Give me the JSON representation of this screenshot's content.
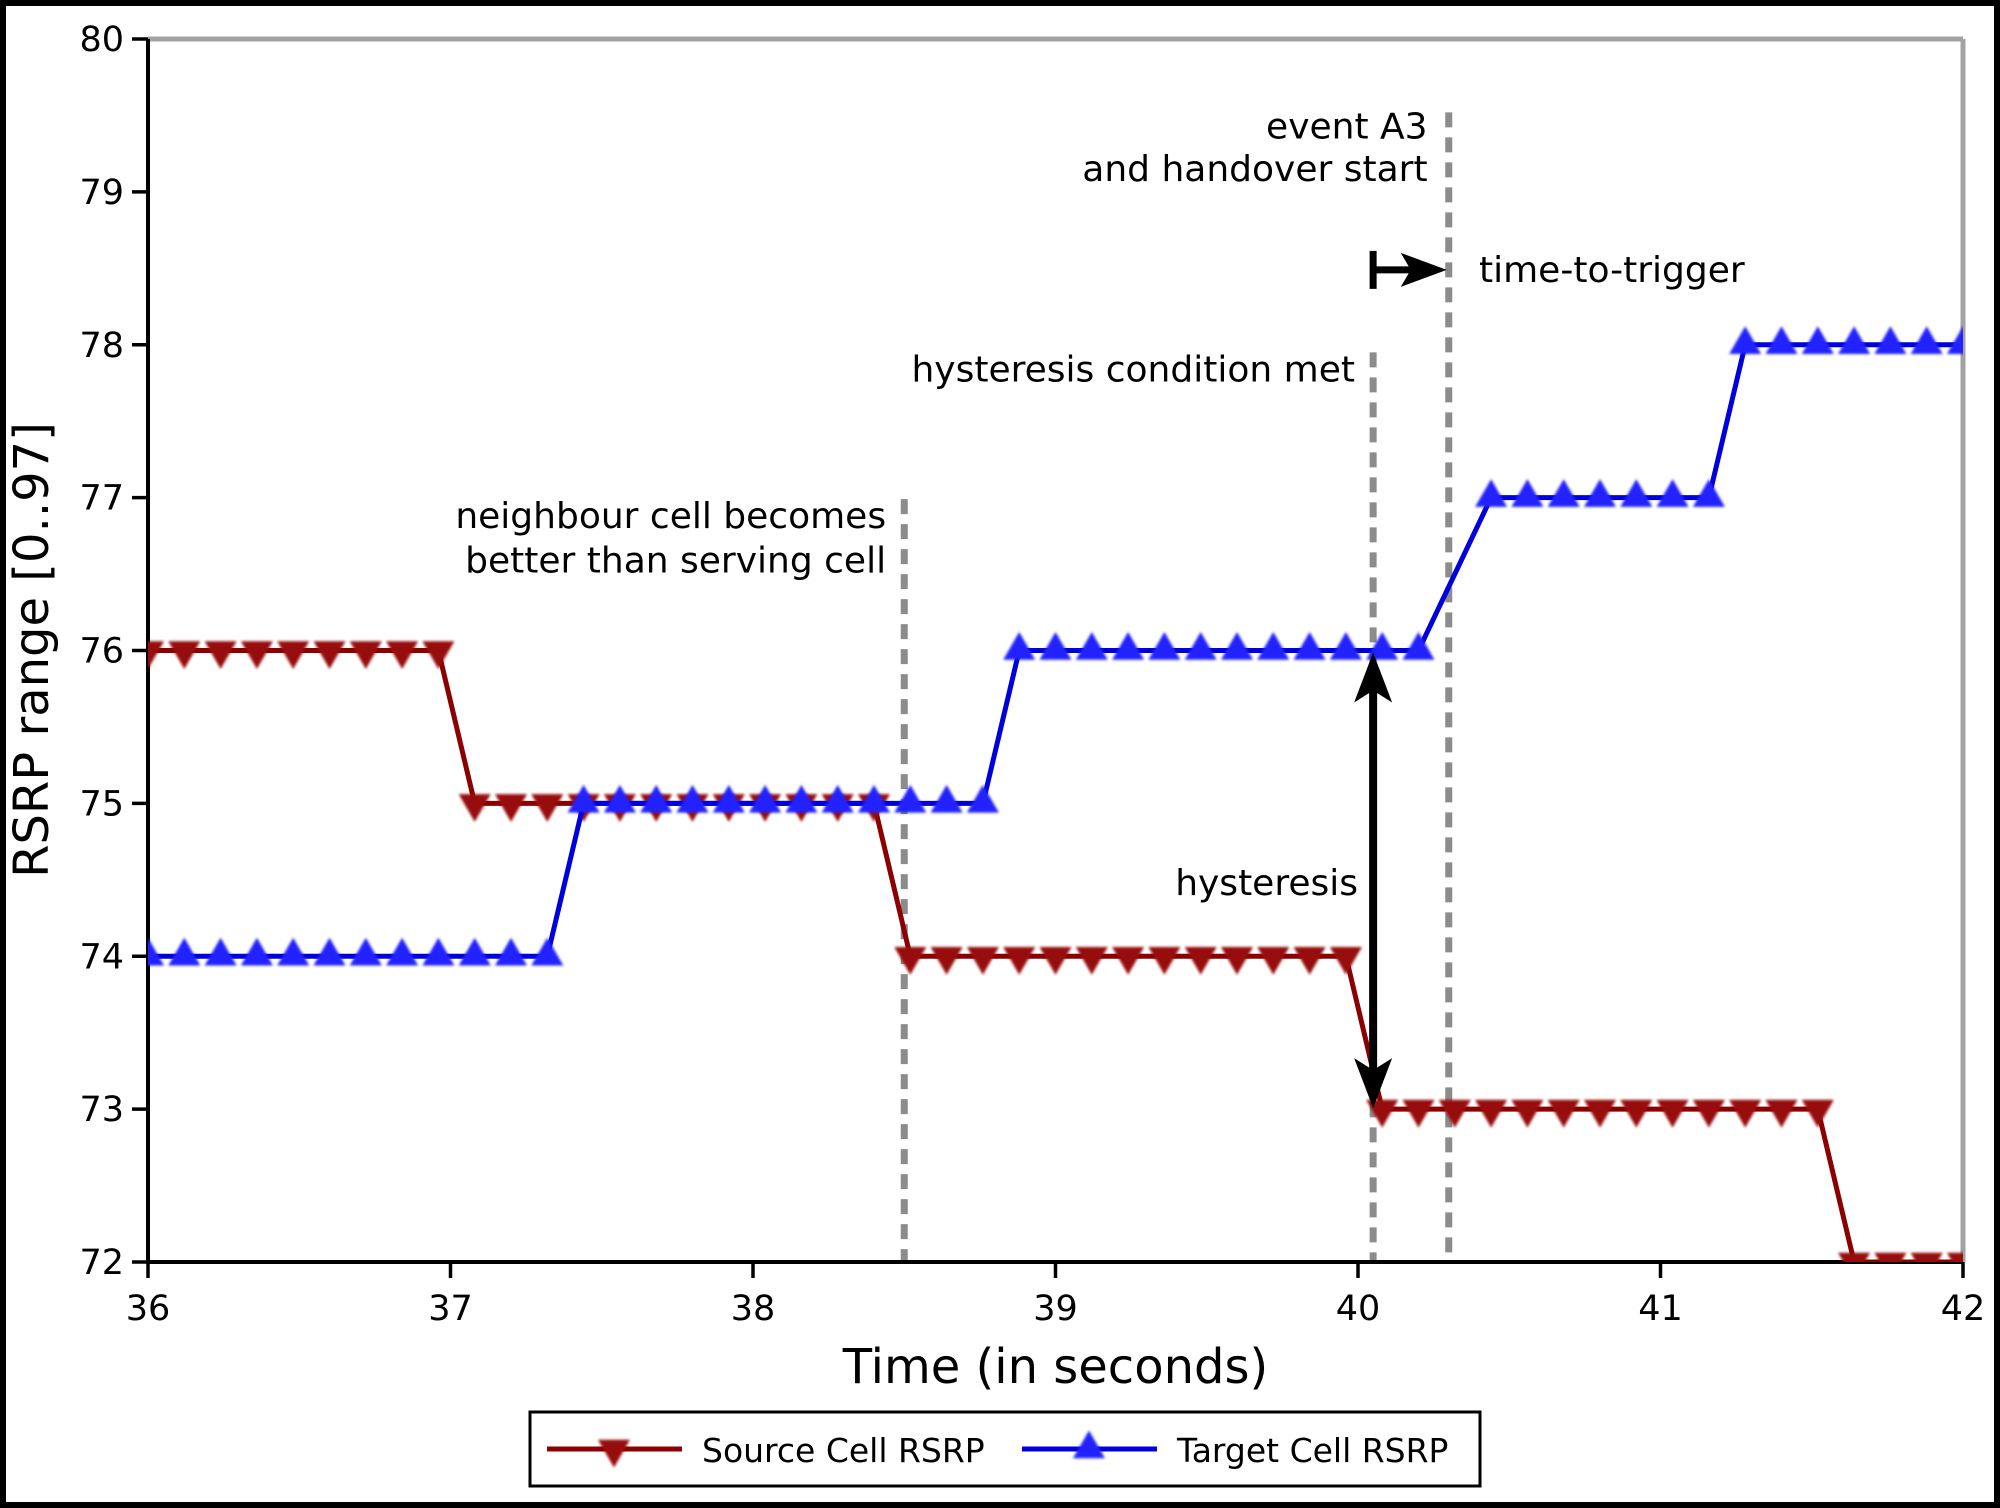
{
  "figure": {
    "background": "#ffffff",
    "border_color": "#000000"
  },
  "chart_data": {
    "type": "line",
    "title": "",
    "xlabel": "Time (in seconds)",
    "ylabel": "RSRP range [0..97]",
    "xlim": [
      36,
      42
    ],
    "ylim": [
      72,
      80
    ],
    "x_ticks": [
      36,
      37,
      38,
      39,
      40,
      41,
      42
    ],
    "y_ticks": [
      72,
      73,
      74,
      75,
      76,
      77,
      78,
      79,
      80
    ],
    "grid": false,
    "legend_position": "bottom-center",
    "sample_interval_s": 0.12,
    "series": [
      {
        "name": "Source Cell RSRP",
        "color": "#8b0000",
        "marker_color": "#971010",
        "marker": "triangle-down",
        "points": [
          [
            36.0,
            76
          ],
          [
            36.12,
            76
          ],
          [
            36.24,
            76
          ],
          [
            36.36,
            76
          ],
          [
            36.48,
            76
          ],
          [
            36.6,
            76
          ],
          [
            36.72,
            76
          ],
          [
            36.84,
            76
          ],
          [
            36.96,
            76
          ],
          [
            37.08,
            75
          ],
          [
            37.2,
            75
          ],
          [
            37.32,
            75
          ],
          [
            37.44,
            75
          ],
          [
            37.56,
            75
          ],
          [
            37.68,
            75
          ],
          [
            37.8,
            75
          ],
          [
            37.92,
            75
          ],
          [
            38.04,
            75
          ],
          [
            38.16,
            75
          ],
          [
            38.28,
            75
          ],
          [
            38.4,
            75
          ],
          [
            38.52,
            74
          ],
          [
            38.64,
            74
          ],
          [
            38.76,
            74
          ],
          [
            38.88,
            74
          ],
          [
            39.0,
            74
          ],
          [
            39.12,
            74
          ],
          [
            39.24,
            74
          ],
          [
            39.36,
            74
          ],
          [
            39.48,
            74
          ],
          [
            39.6,
            74
          ],
          [
            39.72,
            74
          ],
          [
            39.84,
            74
          ],
          [
            39.96,
            74
          ],
          [
            40.08,
            73
          ],
          [
            40.2,
            73
          ],
          [
            40.32,
            73
          ],
          [
            40.44,
            73
          ],
          [
            40.56,
            73
          ],
          [
            40.68,
            73
          ],
          [
            40.8,
            73
          ],
          [
            40.92,
            73
          ],
          [
            41.04,
            73
          ],
          [
            41.16,
            73
          ],
          [
            41.28,
            73
          ],
          [
            41.4,
            73
          ],
          [
            41.52,
            73
          ],
          [
            41.64,
            72
          ],
          [
            41.76,
            72
          ],
          [
            41.88,
            72
          ],
          [
            42.0,
            72
          ]
        ]
      },
      {
        "name": "Target Cell RSRP",
        "color": "#0000dd",
        "marker_color": "#2222ff",
        "marker": "triangle-up",
        "points": [
          [
            36.0,
            74
          ],
          [
            36.12,
            74
          ],
          [
            36.24,
            74
          ],
          [
            36.36,
            74
          ],
          [
            36.48,
            74
          ],
          [
            36.6,
            74
          ],
          [
            36.72,
            74
          ],
          [
            36.84,
            74
          ],
          [
            36.96,
            74
          ],
          [
            37.08,
            74
          ],
          [
            37.2,
            74
          ],
          [
            37.32,
            74
          ],
          [
            37.44,
            75
          ],
          [
            37.56,
            75
          ],
          [
            37.68,
            75
          ],
          [
            37.8,
            75
          ],
          [
            37.92,
            75
          ],
          [
            38.04,
            75
          ],
          [
            38.16,
            75
          ],
          [
            38.28,
            75
          ],
          [
            38.4,
            75
          ],
          [
            38.52,
            75
          ],
          [
            38.64,
            75
          ],
          [
            38.76,
            75
          ],
          [
            38.88,
            76
          ],
          [
            39.0,
            76
          ],
          [
            39.12,
            76
          ],
          [
            39.24,
            76
          ],
          [
            39.36,
            76
          ],
          [
            39.48,
            76
          ],
          [
            39.6,
            76
          ],
          [
            39.72,
            76
          ],
          [
            39.84,
            76
          ],
          [
            39.96,
            76
          ],
          [
            40.08,
            76
          ],
          [
            40.2,
            76
          ],
          [
            40.44,
            77
          ],
          [
            40.56,
            77
          ],
          [
            40.68,
            77
          ],
          [
            40.8,
            77
          ],
          [
            40.92,
            77
          ],
          [
            41.04,
            77
          ],
          [
            41.16,
            77
          ],
          [
            41.28,
            78
          ],
          [
            41.4,
            78
          ],
          [
            41.52,
            78
          ],
          [
            41.64,
            78
          ],
          [
            41.76,
            78
          ],
          [
            41.88,
            78
          ],
          [
            42.0,
            78
          ]
        ]
      }
    ],
    "event_lines": [
      {
        "id": "neighbour-better-line",
        "t": 38.5,
        "v_top": 76.99,
        "color": "#8c8c8c"
      },
      {
        "id": "hysteresis-met-line",
        "t": 40.05,
        "v_top": 77.95,
        "color": "#8c8c8c"
      },
      {
        "id": "event-a3-line",
        "t": 40.3,
        "v_top": 79.52,
        "color": "#8c8c8c"
      }
    ],
    "annotations": [
      {
        "id": "neighbour-note",
        "lines": [
          "neighbour cell becomes",
          "better than serving cell"
        ],
        "anchor": "end",
        "t": 38.44,
        "v": [
          76.8,
          76.51
        ]
      },
      {
        "id": "hysteresis-condition-note",
        "lines": [
          "hysteresis condition met"
        ],
        "anchor": "end",
        "t": 39.99,
        "v": [
          77.76
        ]
      },
      {
        "id": "event-a3-note",
        "lines": [
          "event A3",
          "and handover start"
        ],
        "anchor": "end",
        "t": 40.23,
        "v": [
          79.35,
          79.07
        ]
      },
      {
        "id": "time-to-trigger-note",
        "lines": [
          "time-to-trigger"
        ],
        "anchor": "start",
        "t": 40.4,
        "v": [
          78.41
        ]
      },
      {
        "id": "hysteresis-note",
        "lines": [
          "hysteresis"
        ],
        "anchor": "end",
        "t": 40.0,
        "v": [
          74.4
        ]
      }
    ],
    "arrows": {
      "time_to_trigger": {
        "t_start": 40.05,
        "t_end": 40.3,
        "v": 78.49,
        "color": "#000000"
      },
      "hysteresis": {
        "t": 40.05,
        "v_from": 73,
        "v_to": 76,
        "color": "#000000"
      }
    }
  }
}
